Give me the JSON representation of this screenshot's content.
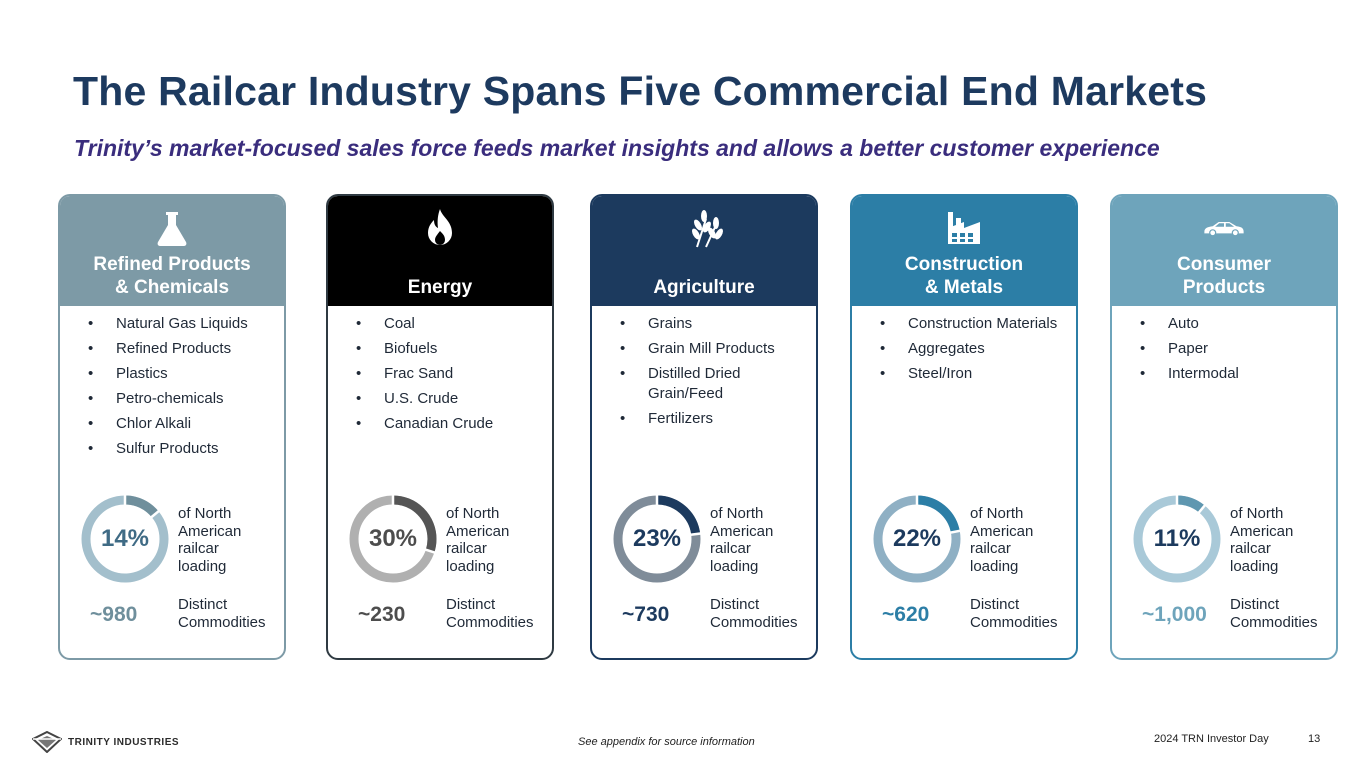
{
  "title": "The Railcar Industry Spans Five Commercial End Markets",
  "subtitle": "Trinity’s market-focused sales force feeds market insights and allows a better customer experience",
  "share_label_lines": [
    "of North",
    "American",
    "railcar",
    "loading"
  ],
  "count_label_lines": [
    "Distinct",
    "Commodities"
  ],
  "markets": [
    {
      "title_lines": [
        "Refined Products",
        "& Chemicals"
      ],
      "icon": "flask-icon",
      "items": [
        "Natural Gas Liquids",
        "Refined Products",
        "Plastics",
        "Petro-chemicals",
        "Chlor Alkali",
        "Sulfur Products"
      ],
      "share": 0.14,
      "share_text": "14%",
      "count_text": "~980",
      "colors": {
        "head": "#7d9aa6",
        "border": "#7d9aa6",
        "arc": "#6f8f9c",
        "ring": "#a3bfcc",
        "pct": "#3f6b85",
        "count": "#6f8f9c"
      }
    },
    {
      "title_lines": [
        "Energy"
      ],
      "icon": "flame-icon",
      "items": [
        "Coal",
        "Biofuels",
        "Frac Sand",
        "U.S. Crude",
        "Canadian Crude"
      ],
      "share": 0.3,
      "share_text": "30%",
      "count_text": "~230",
      "colors": {
        "head": "#000000",
        "border": "#2f3a42",
        "arc": "#555555",
        "ring": "#b0b0b0",
        "pct": "#4d4d4d",
        "count": "#4d4d4d"
      }
    },
    {
      "title_lines": [
        "Agriculture"
      ],
      "icon": "wheat-icon",
      "items": [
        "Grains",
        "Grain Mill Products",
        "Distilled Dried Grain/Feed",
        "Fertilizers"
      ],
      "share": 0.23,
      "share_text": "23%",
      "count_text": "~730",
      "colors": {
        "head": "#1c3a5e",
        "border": "#1c3a5e",
        "arc": "#1c3a5e",
        "ring": "#7f8c99",
        "pct": "#1c3a5e",
        "count": "#1c3a5e"
      }
    },
    {
      "title_lines": [
        "Construction",
        "& Metals"
      ],
      "icon": "factory-icon",
      "items": [
        "Construction Materials",
        "Aggregates",
        "Steel/Iron"
      ],
      "share": 0.22,
      "share_text": "22%",
      "count_text": "~620",
      "colors": {
        "head": "#2c7ea6",
        "border": "#2c7ea6",
        "arc": "#2c7ea6",
        "ring": "#8fb0c4",
        "pct": "#1c3a5e",
        "count": "#2c7ea6"
      }
    },
    {
      "title_lines": [
        "Consumer",
        "Products"
      ],
      "icon": "car-icon",
      "items": [
        "Auto",
        "Paper",
        "Intermodal"
      ],
      "share": 0.11,
      "share_text": "11%",
      "count_text": "~1,000",
      "colors": {
        "head": "#6ea4bb",
        "border": "#6ea4bb",
        "arc": "#5f97b0",
        "ring": "#a9c9d8",
        "pct": "#1c3a5e",
        "count": "#6ea4bb"
      }
    }
  ],
  "footer": {
    "brand": "TRINITY INDUSTRIES",
    "footnote": "See appendix for source information",
    "event": "2024 TRN Investor Day",
    "page": "13"
  }
}
